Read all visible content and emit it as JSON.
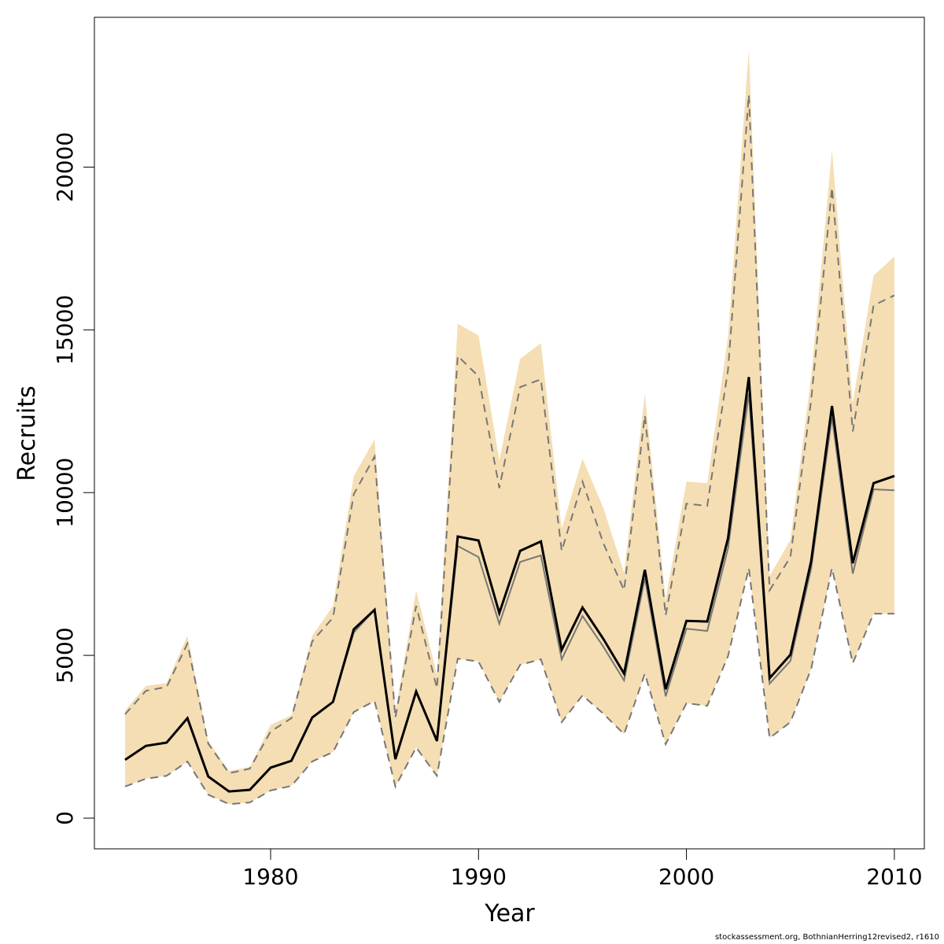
{
  "chart_data": {
    "type": "line",
    "title": "",
    "xlabel": "Year",
    "ylabel": "Recruits",
    "xlim": [
      1972.3,
      2011.5
    ],
    "ylim": [
      -950,
      25000
    ],
    "x_ticks": [
      1980,
      1990,
      2000,
      2010
    ],
    "y_ticks": [
      0,
      5000,
      10000,
      15000,
      20000
    ],
    "grid": false,
    "band_color": "#F5DEB3",
    "x": [
      1973,
      1974,
      1975,
      1976,
      1977,
      1978,
      1979,
      1980,
      1981,
      1982,
      1983,
      1984,
      1985,
      1986,
      1987,
      1988,
      1989,
      1990,
      1991,
      1992,
      1993,
      1994,
      1995,
      1996,
      1997,
      1998,
      1999,
      2000,
      2001,
      2002,
      2003,
      2004,
      2005,
      2006,
      2007,
      2008,
      2009,
      2010
    ],
    "band_upper": [
      3310,
      4060,
      4150,
      5600,
      2370,
      1450,
      1570,
      2870,
      3160,
      5600,
      6520,
      10510,
      11640,
      3260,
      7000,
      4400,
      15190,
      14830,
      10990,
      14110,
      14590,
      8890,
      11040,
      9540,
      7540,
      13040,
      6710,
      10340,
      10290,
      14780,
      23620,
      7440,
      8550,
      13570,
      20530,
      12750,
      16670,
      17250
    ],
    "band_lower": [
      970,
      1210,
      1300,
      1740,
      720,
      430,
      480,
      850,
      990,
      1740,
      2030,
      3260,
      3600,
      970,
      2170,
      1300,
      4900,
      4810,
      3570,
      4710,
      4880,
      2950,
      3770,
      3210,
      2580,
      4440,
      2270,
      3530,
      3450,
      4980,
      7680,
      2460,
      2950,
      4590,
      7680,
      4760,
      6280,
      6280
    ],
    "series": [
      {
        "style": "dashed-grey",
        "values": [
          3190,
          3910,
          4030,
          5360,
          2290,
          1380,
          1520,
          2660,
          3070,
          5430,
          6160,
          9950,
          11110,
          3090,
          6520,
          3990,
          14200,
          13570,
          10140,
          13240,
          13480,
          8210,
          10340,
          8450,
          7000,
          12370,
          6230,
          9660,
          9590,
          13770,
          22220,
          7000,
          8020,
          12850,
          19370,
          11880,
          15750,
          16060
        ]
      },
      {
        "style": "dashed-grey",
        "values": [
          970,
          1210,
          1300,
          1740,
          720,
          430,
          480,
          850,
          990,
          1740,
          2030,
          3260,
          3600,
          970,
          2170,
          1300,
          4900,
          4810,
          3570,
          4710,
          4880,
          2950,
          3770,
          3210,
          2580,
          4440,
          2270,
          3530,
          3450,
          4980,
          7680,
          2460,
          2950,
          4590,
          7680,
          4760,
          6280,
          6280
        ]
      },
      {
        "style": "solid-grey",
        "values": [
          1790,
          2220,
          2320,
          3070,
          1280,
          820,
          870,
          1550,
          1760,
          3090,
          3570,
          5700,
          6400,
          1810,
          3890,
          2370,
          8360,
          8020,
          5970,
          7870,
          8070,
          4880,
          6210,
          5270,
          4230,
          7370,
          3740,
          5820,
          5750,
          8290,
          13040,
          4130,
          4830,
          7680,
          12320,
          7510,
          10100,
          10070
        ]
      },
      {
        "style": "solid-black",
        "values": [
          1790,
          2220,
          2320,
          3070,
          1280,
          820,
          870,
          1550,
          1760,
          3090,
          3570,
          5800,
          6400,
          1810,
          3890,
          2370,
          8650,
          8530,
          6300,
          8210,
          8500,
          5170,
          6470,
          5510,
          4440,
          7630,
          3960,
          6060,
          6040,
          8600,
          13550,
          4300,
          5020,
          7900,
          12660,
          7830,
          10290,
          10510
        ]
      }
    ]
  },
  "footer": "stockassessment.org, BothnianHerring12revised2, r1610"
}
